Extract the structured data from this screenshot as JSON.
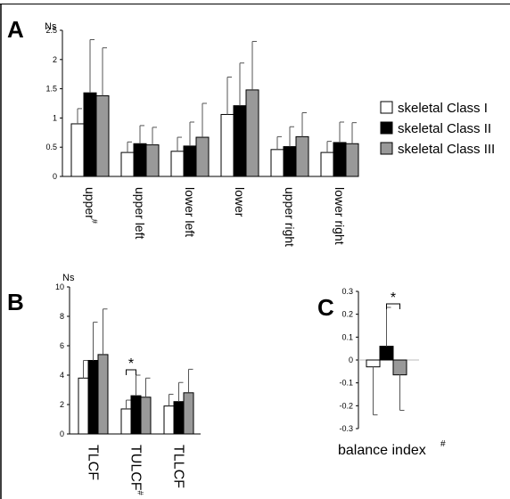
{
  "legend": {
    "entries": [
      {
        "label": "skeletal Class I",
        "color": "#ffffff"
      },
      {
        "label": "skeletal Class II",
        "color": "#000000"
      },
      {
        "label": "skeletal Class III",
        "color": "#999999"
      }
    ]
  },
  "chart_data": [
    {
      "panel": "A",
      "type": "bar",
      "ylabel": "Ns",
      "ylim": [
        0,
        2.5
      ],
      "yticks": [
        "0",
        "0.5",
        "1",
        "1.5",
        "2",
        "2.5"
      ],
      "categories": [
        "upper",
        "upper left",
        "lower left",
        "lower",
        "upper right",
        "lower right"
      ],
      "category_marks": [
        "#",
        "",
        "",
        "",
        "",
        ""
      ],
      "series": [
        {
          "name": "skeletal Class I",
          "color": "#ffffff",
          "values": [
            0.9,
            0.41,
            0.43,
            1.06,
            0.46,
            0.41
          ],
          "errors": [
            0.26,
            0.18,
            0.24,
            0.64,
            0.22,
            0.19
          ]
        },
        {
          "name": "skeletal Class II",
          "color": "#000000",
          "values": [
            1.43,
            0.56,
            0.52,
            1.21,
            0.51,
            0.58
          ],
          "errors": [
            0.91,
            0.31,
            0.41,
            0.73,
            0.34,
            0.35
          ]
        },
        {
          "name": "skeletal Class III",
          "color": "#999999",
          "values": [
            1.38,
            0.54,
            0.67,
            1.48,
            0.68,
            0.56
          ],
          "errors": [
            0.82,
            0.3,
            0.58,
            0.83,
            0.41,
            0.36
          ]
        }
      ]
    },
    {
      "panel": "B",
      "type": "bar",
      "ylabel": "Ns",
      "ylim": [
        0,
        10
      ],
      "yticks": [
        "0",
        "2",
        "4",
        "6",
        "8",
        "10"
      ],
      "categories": [
        "TLCF",
        "TULCF",
        "TLLCF"
      ],
      "category_marks": [
        "",
        "#",
        ""
      ],
      "significance": [
        {
          "category_index": 1,
          "from_series": 0,
          "to_series": 1,
          "label": "*"
        }
      ],
      "series": [
        {
          "name": "skeletal Class I",
          "color": "#ffffff",
          "values": [
            3.8,
            1.7,
            1.9
          ],
          "errors": [
            1.2,
            0.6,
            0.8
          ]
        },
        {
          "name": "skeletal Class II",
          "color": "#000000",
          "values": [
            5.0,
            2.6,
            2.2
          ],
          "errors": [
            2.6,
            1.4,
            1.3
          ]
        },
        {
          "name": "skeletal Class III",
          "color": "#999999",
          "values": [
            5.4,
            2.5,
            2.8
          ],
          "errors": [
            3.1,
            1.3,
            1.6
          ]
        }
      ]
    },
    {
      "panel": "C",
      "type": "bar",
      "xlabel": "balance index",
      "xlabel_mark": "#",
      "ylim": [
        -0.3,
        0.3
      ],
      "yticks": [
        "0.3",
        "0.2",
        "0.1",
        "0",
        "-0.1",
        "-0.2",
        "-0.3"
      ],
      "significance": [
        {
          "from_series": 1,
          "to_series": 2,
          "label": "*"
        }
      ],
      "series": [
        {
          "name": "skeletal Class I",
          "color": "#ffffff",
          "value": -0.03,
          "error": 0.21,
          "error_dir": -1
        },
        {
          "name": "skeletal Class II",
          "color": "#000000",
          "value": 0.06,
          "error": 0.17,
          "error_dir": 1
        },
        {
          "name": "skeletal Class III",
          "color": "#999999",
          "value": -0.065,
          "error": 0.155,
          "error_dir": -1
        }
      ]
    }
  ]
}
